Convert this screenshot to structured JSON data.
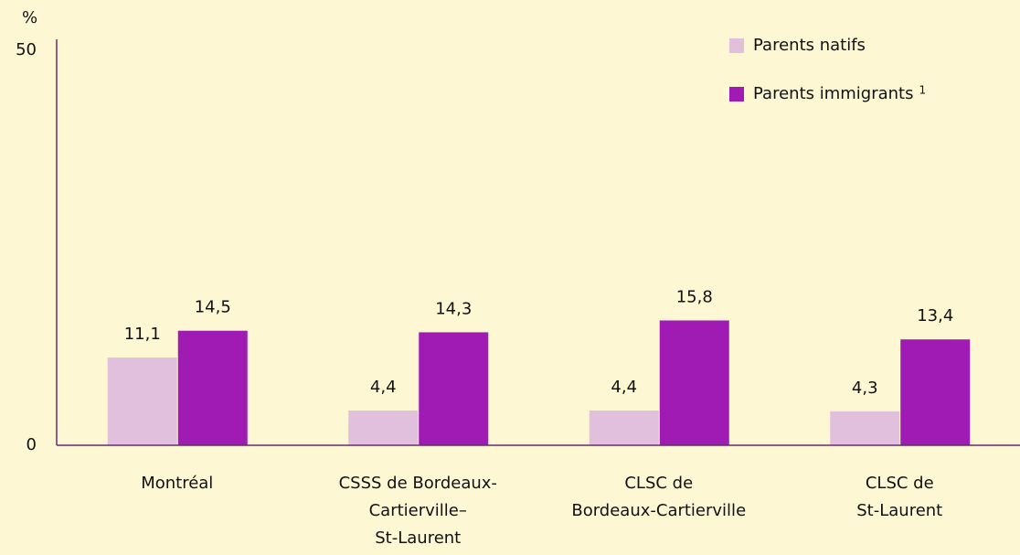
{
  "chart_data": {
    "type": "bar",
    "y_axis_label": "%",
    "categories": [
      "Montréal",
      "CSSS de Bordeaux-\nCartierville–\nSt-Laurent",
      "CLSC de\nBordeaux-Cartierville",
      "CLSC de\nSt-Laurent"
    ],
    "series": [
      {
        "name": "Parents natifs",
        "color": "#e0c0dc",
        "values": [
          11.1,
          4.4,
          4.4,
          4.3
        ],
        "value_labels": [
          "11,1",
          "4,4",
          "4,4",
          "4,3"
        ]
      },
      {
        "name": "Parents immigrants",
        "name_note": "1",
        "color": "#a01ab4",
        "values": [
          14.5,
          14.3,
          15.8,
          13.4
        ],
        "value_labels": [
          "14,5",
          "14,3",
          "15,8",
          "13,4"
        ]
      }
    ],
    "ylim": [
      0,
      50
    ],
    "yticks": [
      0,
      50
    ],
    "legend": "upper right"
  }
}
